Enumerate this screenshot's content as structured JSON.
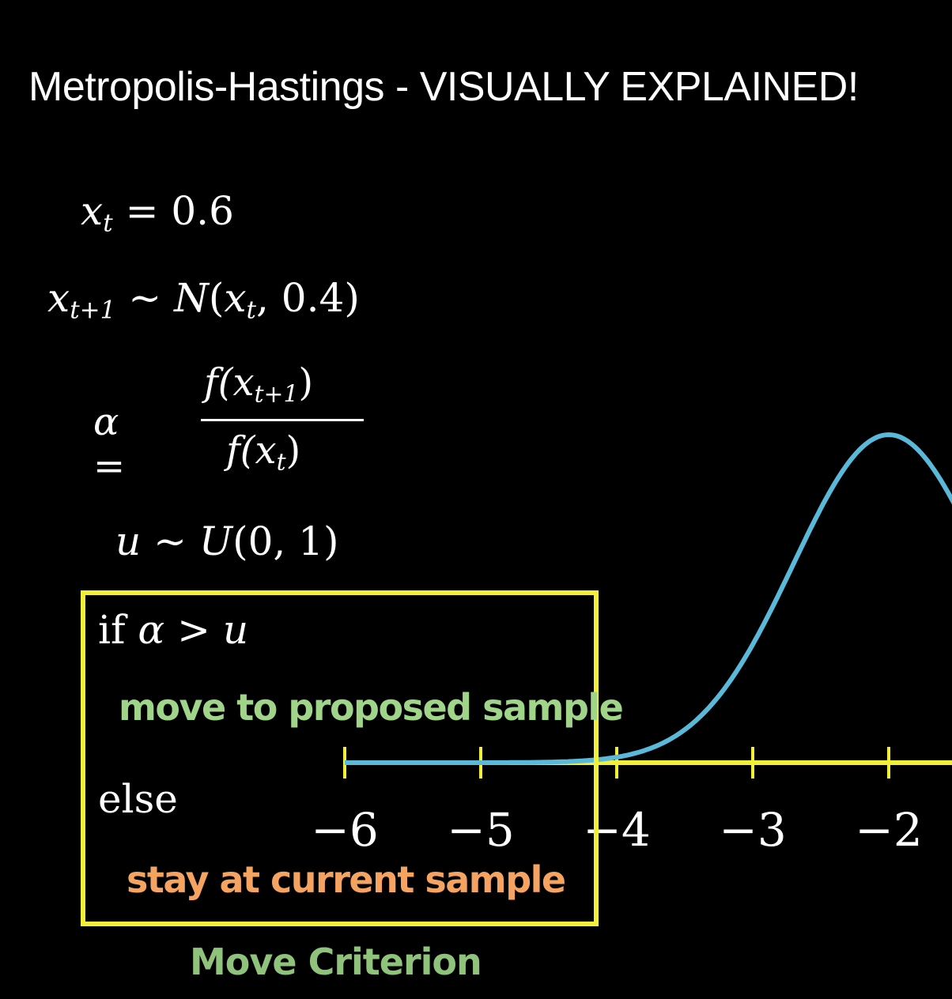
{
  "title": "Metropolis-Hastings - VISUALLY EXPLAINED!",
  "equations": {
    "eq1": {
      "lhs": "x",
      "lhs_sub": "t",
      "rhs": "= 0.6"
    },
    "eq2": {
      "lhs": "x",
      "lhs_sub": "t+1",
      "rel": "~",
      "dist": "N",
      "args_open": "(",
      "arg_var": "x",
      "arg_sub": "t",
      "args_close": ", 0.4)"
    },
    "eq3": {
      "lhs": "α =",
      "num_open": "f(",
      "num_var": "x",
      "num_sub": "t+1",
      "num_close": ")",
      "den_open": "f(",
      "den_var": "x",
      "den_sub": "t",
      "den_close": ")"
    },
    "eq4": {
      "lhs": "u",
      "rel": "~",
      "dist": "U",
      "args": "(0, 1)"
    }
  },
  "criterion": {
    "if_text": "if",
    "if_cond": "α > u",
    "accept_action": "move to proposed sample",
    "else_text": "else",
    "reject_action": "stay at current sample",
    "caption": "Move Criterion"
  },
  "axis": {
    "tick_labels": [
      "−6",
      "−5",
      "−4",
      "−3",
      "−2"
    ],
    "tick_values": [
      -6,
      -5,
      -4,
      -3,
      -2
    ]
  },
  "curve": {
    "type": "gaussian",
    "mean": -2,
    "std": 0.7,
    "peak_value": 1
  },
  "colors": {
    "background": "#000000",
    "text": "#ffffff",
    "box": "#f2ef3a",
    "axis": "#f2ef3a",
    "curve": "#5ab8d8",
    "accept": "#9fd489",
    "reject": "#f4a460",
    "caption": "#8fc27a"
  }
}
